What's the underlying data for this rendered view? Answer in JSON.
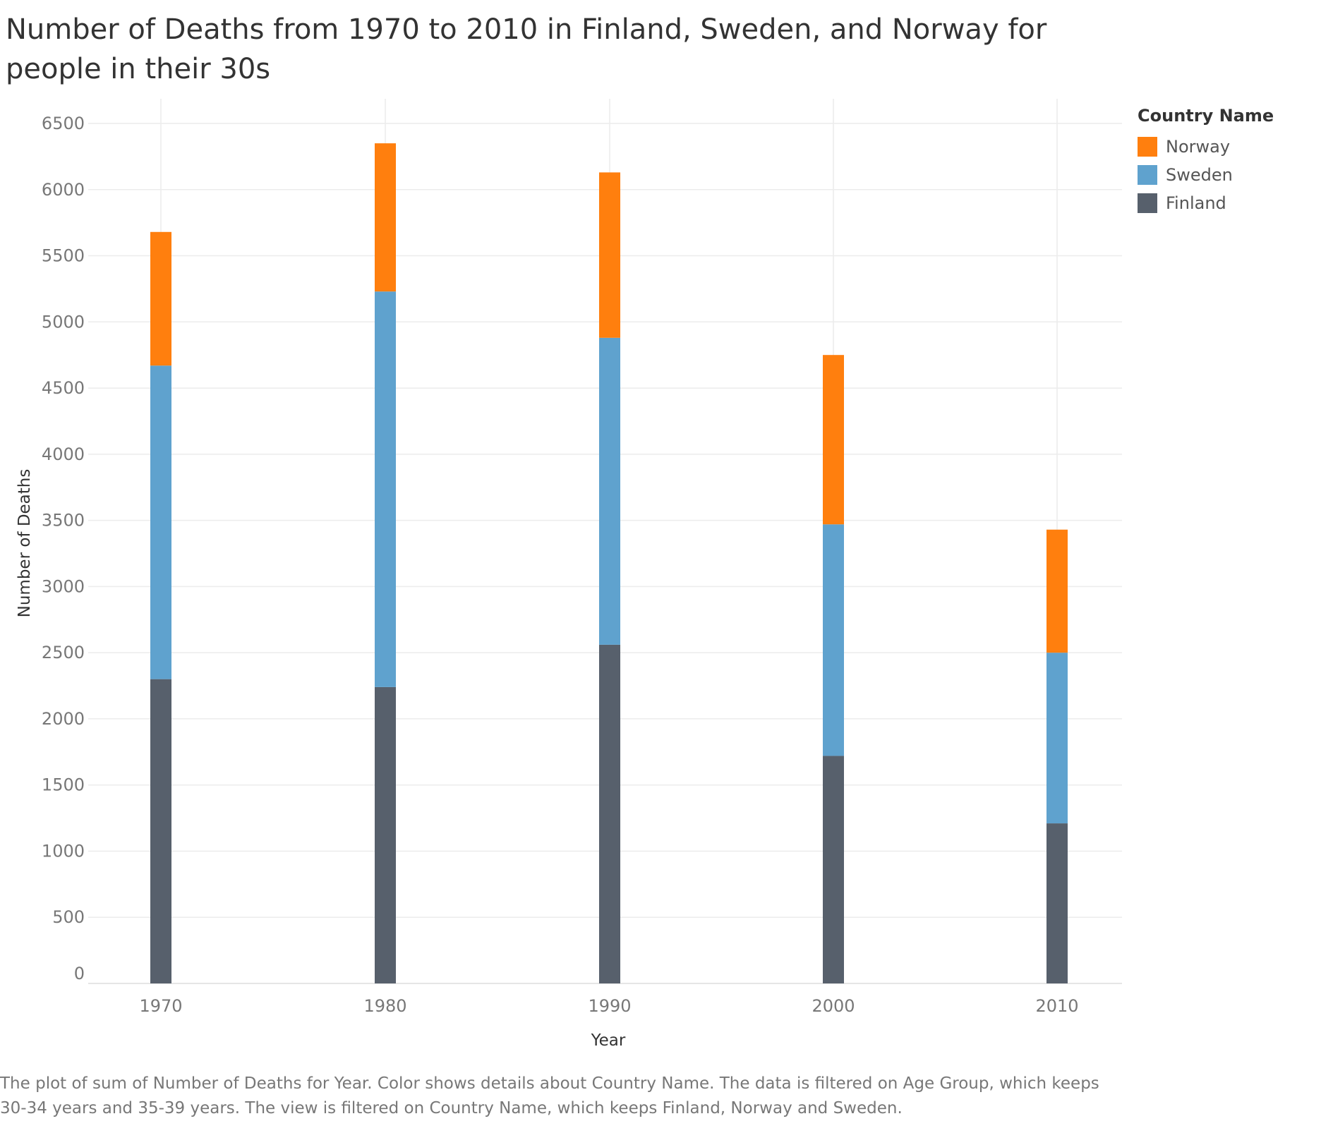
{
  "title": "Number of Deaths from 1970 to 2010 in Finland, Sweden, and Norway for people in their 30s",
  "caption": "The plot of sum of Number of Deaths for Year.  Color shows details about Country Name. The data is filtered on Age Group, which keeps 30-34 years and 35-39 years. The view is filtered on Country Name, which keeps Finland, Norway and Sweden.",
  "legend": {
    "title": "Country Name",
    "items": [
      {
        "label": "Norway",
        "color": "#FF7F0E"
      },
      {
        "label": "Sweden",
        "color": "#5FA2CE"
      },
      {
        "label": "Finland",
        "color": "#57606C"
      }
    ]
  },
  "chart_data": {
    "type": "bar",
    "stacked": true,
    "title": "Number of Deaths from 1970 to 2010 in Finland, Sweden, and Norway for people in their 30s",
    "xlabel": "Year",
    "ylabel": "Number of Deaths",
    "categories": [
      "1970",
      "1980",
      "1990",
      "2000",
      "2010"
    ],
    "ylim": [
      0,
      6500
    ],
    "yticks": [
      0,
      500,
      1000,
      1500,
      2000,
      2500,
      3000,
      3500,
      4000,
      4500,
      5000,
      5500,
      6000,
      6500
    ],
    "grid": true,
    "legend_position": "top-right",
    "series": [
      {
        "name": "Finland",
        "color": "#57606C",
        "values": [
          2300,
          2240,
          2560,
          1720,
          1210
        ]
      },
      {
        "name": "Sweden",
        "color": "#5FA2CE",
        "values": [
          2370,
          2990,
          2320,
          1750,
          1290
        ]
      },
      {
        "name": "Norway",
        "color": "#FF7F0E",
        "values": [
          1010,
          1120,
          1250,
          1280,
          930
        ]
      }
    ]
  }
}
